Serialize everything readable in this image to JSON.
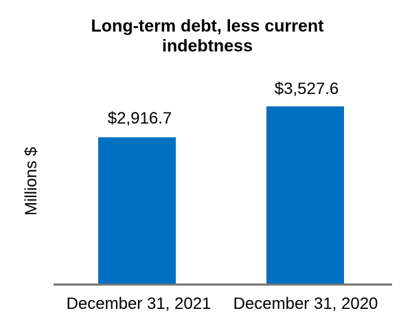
{
  "chart_data": {
    "type": "bar",
    "title": "Long-term debt, less current indebtness",
    "title_lines": [
      "Long-term debt, less current",
      "indebtness"
    ],
    "ylabel": "Millions $",
    "xlabel": "",
    "categories": [
      "December 31, 2021",
      "December 31, 2020"
    ],
    "values": [
      2916.7,
      3527.6
    ],
    "data_labels": [
      "$2,916.7",
      "$3,527.6"
    ],
    "unit": "Millions $",
    "baseline": 0,
    "grid": false,
    "legend_position": "none",
    "colors": {
      "bar_fill": "#0070C0",
      "axis_line": "#767676",
      "text": "#000000",
      "background": "#FFFFFF"
    }
  }
}
